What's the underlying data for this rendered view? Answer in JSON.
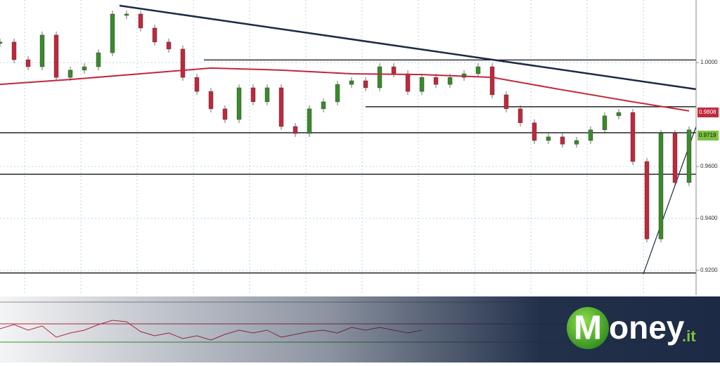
{
  "chart_data": {
    "type": "candlestick",
    "ylim": [
      0.9105,
      1.0241
    ],
    "xlim": [
      0,
      49.5
    ],
    "yticks": [
      {
        "value": 1.0,
        "label": "1.0000"
      },
      {
        "value": 0.96,
        "label": "0.9600"
      },
      {
        "value": 0.94,
        "label": "0.9400"
      },
      {
        "value": 0.92,
        "label": "0.9200"
      }
    ],
    "grid": true,
    "series": [
      {
        "kind": "price",
        "up_color": "#3a8a2a",
        "down_color": "#c0283c",
        "x": [
          0,
          1,
          2,
          3,
          4,
          5,
          6,
          7,
          8,
          9,
          10,
          11,
          12,
          13,
          14,
          15,
          16,
          17,
          18,
          19,
          20,
          21,
          22,
          23,
          24,
          25,
          26,
          27,
          28,
          29,
          30,
          31,
          32,
          33,
          34,
          35,
          36,
          37,
          38,
          39,
          40,
          41,
          42,
          43,
          44,
          45,
          46,
          47,
          48,
          49
        ],
        "values": [
          1.0079,
          1.0011,
          0.9984,
          1.0106,
          0.9943,
          0.9971,
          0.9984,
          1.0038,
          1.0187,
          1.0187,
          1.0133,
          1.0079,
          1.0052,
          0.9943,
          0.9889,
          0.9822,
          0.9781,
          0.9903,
          0.9849,
          0.9903,
          0.9754,
          0.9727,
          0.9822,
          0.9849,
          0.9916,
          0.993,
          0.9903,
          0.9984,
          0.9957,
          0.9889,
          0.9943,
          0.9916,
          0.9943,
          0.9957,
          0.9984,
          0.9876,
          0.9822,
          0.9768,
          0.97,
          0.9714,
          0.9686,
          0.97,
          0.9741,
          0.9795,
          0.9808,
          0.9619,
          0.9321,
          0.9727,
          0.9538,
          0.9741
        ]
      },
      {
        "kind": "average",
        "color": "#c0283c",
        "x": [
          0,
          5,
          10,
          15,
          20,
          25,
          30,
          35,
          40,
          45,
          49
        ],
        "values": [
          0.9916,
          0.9935,
          0.9957,
          0.9979,
          0.9971,
          0.9957,
          0.9954,
          0.9943,
          0.9895,
          0.9849,
          0.9814
        ]
      }
    ],
    "levels": [
      {
        "value": 1.001,
        "x": [
          14.5,
          49.5
        ]
      },
      {
        "value": 0.983,
        "x": [
          26,
          49.5
        ]
      },
      {
        "value": 0.973,
        "x": [
          0,
          49.5
        ]
      },
      {
        "value": 0.957,
        "x": [
          0,
          49.5
        ]
      },
      {
        "value": 0.919,
        "x": [
          0,
          49.5
        ]
      }
    ],
    "price_tags": [
      {
        "value": 0.9808,
        "label": "0.9808",
        "color": "#c0283c"
      },
      {
        "value": 0.9719,
        "label": "0.9719",
        "color": "#7cc242"
      }
    ]
  },
  "brand": [
    "M",
    "oney",
    ".it"
  ]
}
